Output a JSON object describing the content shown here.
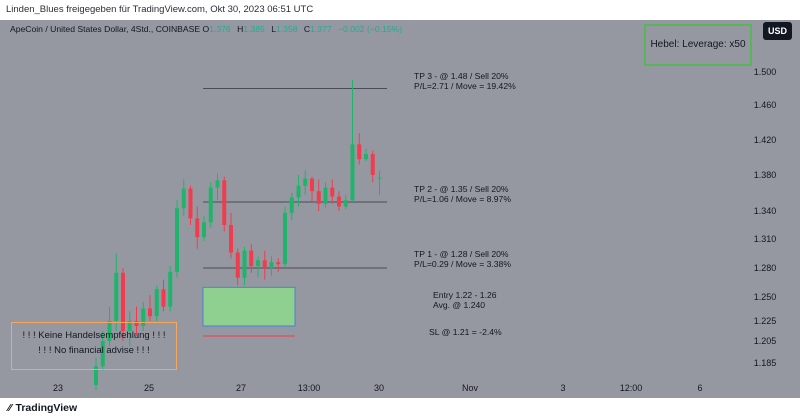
{
  "banner": "Linden_Blues freigegeben für TradingView.com, Okt 30, 2023 06:51 UTC",
  "legend": {
    "symbol": "ApeCoin / United States Dollar, 4Std., COINBASE",
    "o_label": "O",
    "o_value": "1.376",
    "h_label": "H",
    "h_value": "1.385",
    "l_label": "L",
    "l_value": "1.358",
    "c_label": "C",
    "c_value": "1.377",
    "change": "−0.002 (−0.15%)"
  },
  "currency_button": "USD",
  "leverage_note": "Hebel: Leverage: x50",
  "disclaimer": {
    "line1": "! ! ! Keine Handelsempfehlung ! ! !",
    "line2": "! ! ! No financial advise ! ! !"
  },
  "annotations": {
    "tp3_line1": "TP 3 - @ 1.48 / Sell 20%",
    "tp3_line2": "P/L=2.71 / Move = 19.42%",
    "tp2_line1": "TP 2 - @ 1.35 / Sell 20%",
    "tp2_line2": "P/L=1.06 / Move = 8.97%",
    "tp1_line1": "TP 1 - @ 1.28 / Sell 20%",
    "tp1_line2": "P/L=0.29 / Move = 3.38%",
    "entry_line1": "Entry 1.22 - 1.26",
    "entry_line2": "Avg. @ 1.240",
    "sl": "SL @ 1.21 = -2.4%"
  },
  "footer_brand": "TradingView",
  "colors": {
    "background": "#9598a1",
    "up": "#1fb36b",
    "down": "#ef3d4d",
    "entry_fill": "#8fcf8f",
    "entry_border": "#4a7fd6",
    "sl_line": "#ef3d4d",
    "leverage_border": "#57b55a",
    "disclaimer_border": "#f7a65b"
  },
  "chart_data": {
    "type": "candlestick",
    "y_ticks": [
      "1.500",
      "1.460",
      "1.420",
      "1.380",
      "1.340",
      "1.310",
      "1.280",
      "1.250",
      "1.225",
      "1.205",
      "1.185"
    ],
    "x_ticks": [
      "23",
      "25",
      "27",
      "13:00",
      "30",
      "Nov",
      "3",
      "12:00",
      "6"
    ],
    "candles": [
      {
        "o": 1.165,
        "h": 1.19,
        "l": 1.16,
        "c": 1.182
      },
      {
        "o": 1.182,
        "h": 1.215,
        "l": 1.178,
        "c": 1.205
      },
      {
        "o": 1.205,
        "h": 1.24,
        "l": 1.2,
        "c": 1.225
      },
      {
        "o": 1.225,
        "h": 1.295,
        "l": 1.215,
        "c": 1.275
      },
      {
        "o": 1.275,
        "h": 1.28,
        "l": 1.205,
        "c": 1.215
      },
      {
        "o": 1.215,
        "h": 1.235,
        "l": 1.2,
        "c": 1.225
      },
      {
        "o": 1.225,
        "h": 1.24,
        "l": 1.21,
        "c": 1.22
      },
      {
        "o": 1.22,
        "h": 1.245,
        "l": 1.215,
        "c": 1.238
      },
      {
        "o": 1.238,
        "h": 1.252,
        "l": 1.225,
        "c": 1.23
      },
      {
        "o": 1.23,
        "h": 1.262,
        "l": 1.225,
        "c": 1.258
      },
      {
        "o": 1.258,
        "h": 1.268,
        "l": 1.235,
        "c": 1.24
      },
      {
        "o": 1.24,
        "h": 1.282,
        "l": 1.235,
        "c": 1.276
      },
      {
        "o": 1.276,
        "h": 1.352,
        "l": 1.27,
        "c": 1.343
      },
      {
        "o": 1.343,
        "h": 1.375,
        "l": 1.335,
        "c": 1.365
      },
      {
        "o": 1.365,
        "h": 1.368,
        "l": 1.325,
        "c": 1.332
      },
      {
        "o": 1.332,
        "h": 1.345,
        "l": 1.3,
        "c": 1.312
      },
      {
        "o": 1.312,
        "h": 1.335,
        "l": 1.308,
        "c": 1.328
      },
      {
        "o": 1.328,
        "h": 1.372,
        "l": 1.322,
        "c": 1.366
      },
      {
        "o": 1.366,
        "h": 1.382,
        "l": 1.352,
        "c": 1.374
      },
      {
        "o": 1.374,
        "h": 1.378,
        "l": 1.318,
        "c": 1.325
      },
      {
        "o": 1.325,
        "h": 1.338,
        "l": 1.29,
        "c": 1.296
      },
      {
        "o": 1.296,
        "h": 1.3,
        "l": 1.262,
        "c": 1.27
      },
      {
        "o": 1.27,
        "h": 1.302,
        "l": 1.262,
        "c": 1.298
      },
      {
        "o": 1.298,
        "h": 1.305,
        "l": 1.275,
        "c": 1.282
      },
      {
        "o": 1.282,
        "h": 1.292,
        "l": 1.27,
        "c": 1.288
      },
      {
        "o": 1.288,
        "h": 1.298,
        "l": 1.268,
        "c": 1.28
      },
      {
        "o": 1.28,
        "h": 1.292,
        "l": 1.272,
        "c": 1.286
      },
      {
        "o": 1.286,
        "h": 1.29,
        "l": 1.276,
        "c": 1.284
      },
      {
        "o": 1.284,
        "h": 1.345,
        "l": 1.28,
        "c": 1.338
      },
      {
        "o": 1.338,
        "h": 1.36,
        "l": 1.33,
        "c": 1.355
      },
      {
        "o": 1.355,
        "h": 1.38,
        "l": 1.345,
        "c": 1.368
      },
      {
        "o": 1.368,
        "h": 1.385,
        "l": 1.358,
        "c": 1.376
      },
      {
        "o": 1.376,
        "h": 1.378,
        "l": 1.35,
        "c": 1.362
      },
      {
        "o": 1.362,
        "h": 1.375,
        "l": 1.34,
        "c": 1.348
      },
      {
        "o": 1.348,
        "h": 1.372,
        "l": 1.344,
        "c": 1.366
      },
      {
        "o": 1.366,
        "h": 1.375,
        "l": 1.348,
        "c": 1.356
      },
      {
        "o": 1.356,
        "h": 1.362,
        "l": 1.34,
        "c": 1.345
      },
      {
        "o": 1.345,
        "h": 1.358,
        "l": 1.342,
        "c": 1.352
      },
      {
        "o": 1.352,
        "h": 1.49,
        "l": 1.35,
        "c": 1.415
      },
      {
        "o": 1.415,
        "h": 1.428,
        "l": 1.392,
        "c": 1.398
      },
      {
        "o": 1.398,
        "h": 1.41,
        "l": 1.396,
        "c": 1.404
      },
      {
        "o": 1.404,
        "h": 1.408,
        "l": 1.372,
        "c": 1.38
      },
      {
        "o": 1.376,
        "h": 1.385,
        "l": 1.358,
        "c": 1.377
      }
    ],
    "levels": {
      "tp3": 1.48,
      "tp2": 1.35,
      "tp1": 1.28,
      "entry_high": 1.26,
      "entry_low": 1.22,
      "sl": 1.21
    }
  }
}
